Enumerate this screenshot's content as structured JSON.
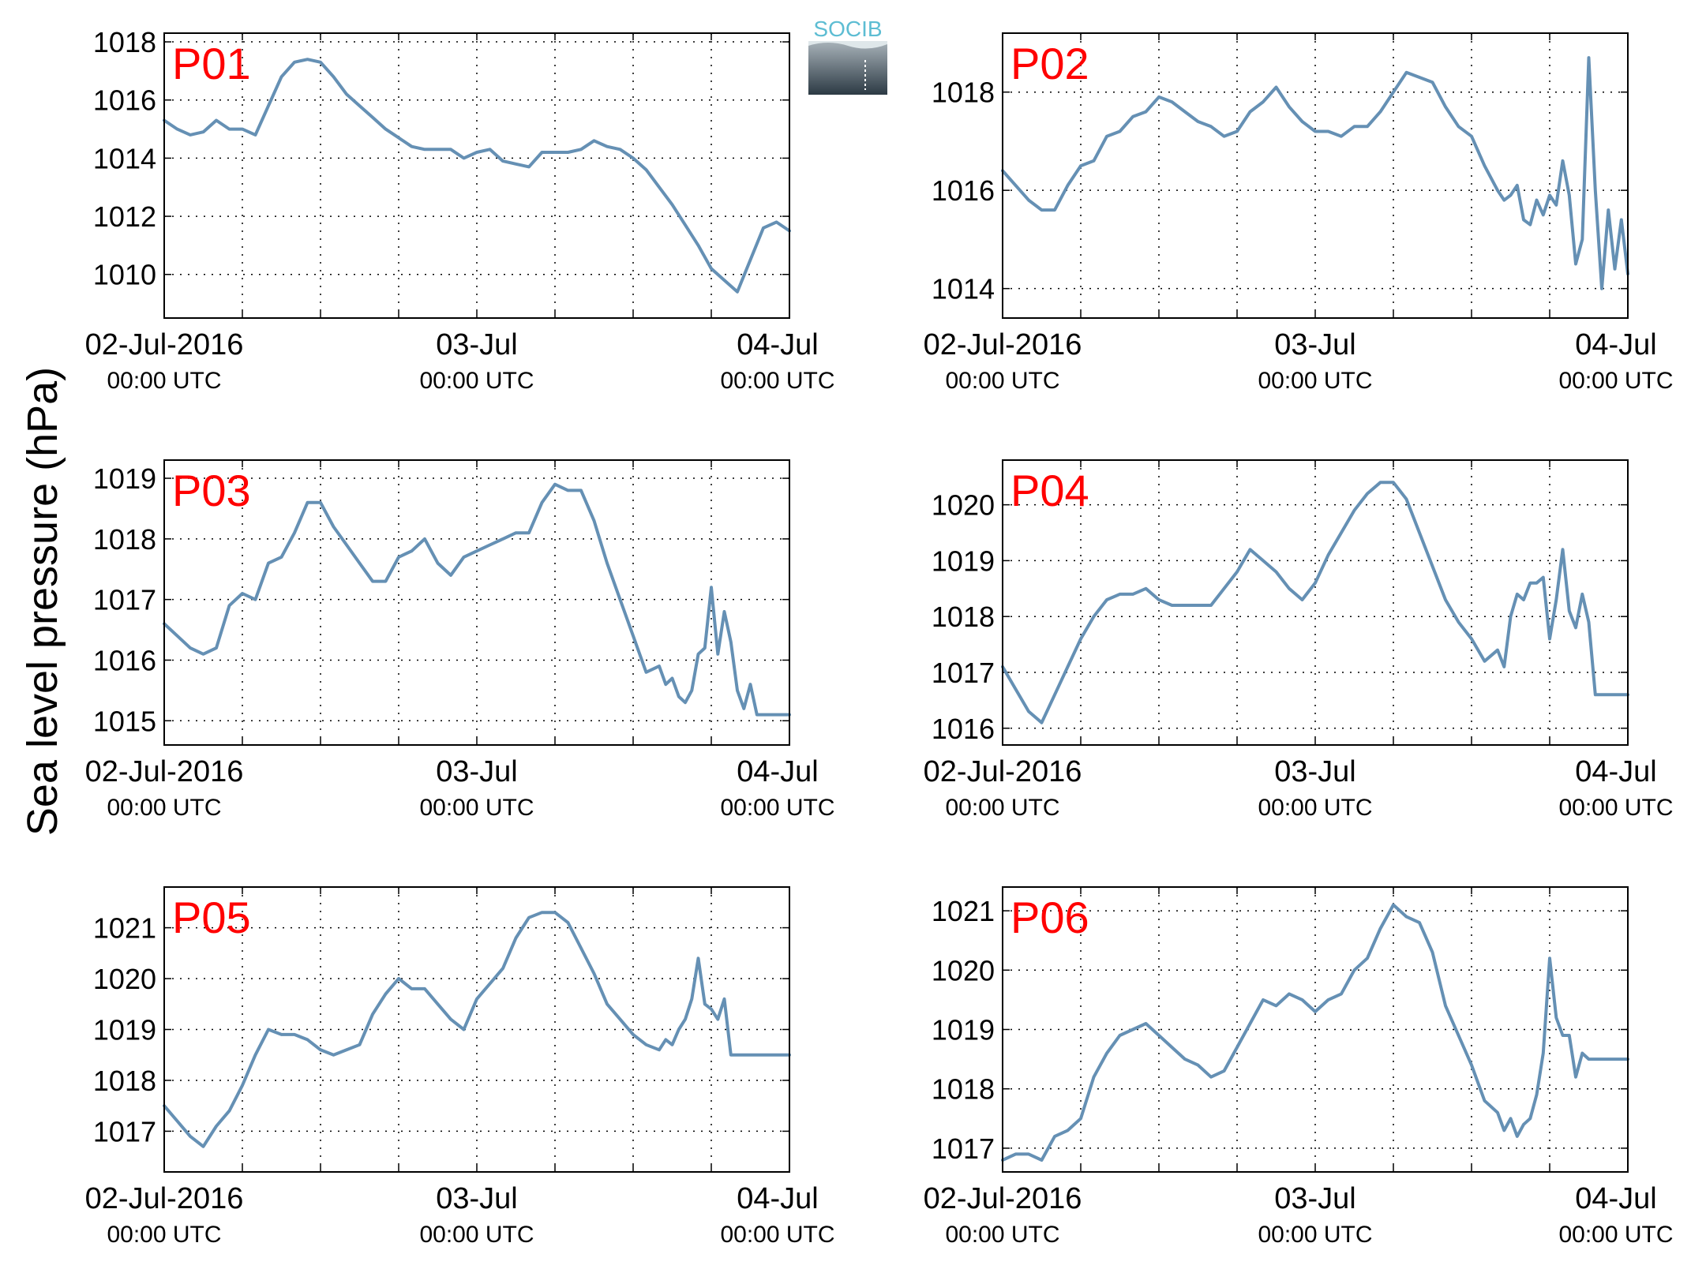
{
  "figure": {
    "ylabel": "Sea level pressure (hPa)",
    "logo_text": "SOCIB",
    "series_color": "#6590b4",
    "label_color": "#ff0000"
  },
  "chart_data": [
    {
      "type": "line",
      "panel": "P01",
      "x_labels": [
        [
          "02-Jul-2016",
          "00:00 UTC"
        ],
        [
          "03-Jul",
          "00:00 UTC"
        ],
        [
          "04-Jul",
          "00:00 UTC"
        ]
      ],
      "xlim": [
        0,
        48
      ],
      "ylim": [
        1008.5,
        1018.3
      ],
      "yticks": [
        1010,
        1012,
        1014,
        1016,
        1018
      ],
      "grid": true,
      "x": [
        0,
        1,
        2,
        3,
        4,
        5,
        6,
        7,
        8,
        9,
        10,
        11,
        12,
        13,
        14,
        15,
        16,
        17,
        18,
        19,
        20,
        21,
        22,
        23,
        24,
        25,
        26,
        27,
        28,
        29,
        30,
        31,
        32,
        33,
        34,
        35,
        36,
        37,
        38,
        39,
        40,
        41,
        42,
        43,
        44,
        45,
        46,
        47,
        48
      ],
      "y": [
        1015.3,
        1015.0,
        1014.8,
        1014.9,
        1015.3,
        1015.0,
        1015.0,
        1014.8,
        1015.8,
        1016.8,
        1017.3,
        1017.4,
        1017.3,
        1016.8,
        1016.2,
        1015.8,
        1015.4,
        1015.0,
        1014.7,
        1014.4,
        1014.3,
        1014.3,
        1014.3,
        1014.0,
        1014.2,
        1014.3,
        1013.9,
        1013.8,
        1013.7,
        1014.2,
        1014.2,
        1014.2,
        1014.3,
        1014.6,
        1014.4,
        1014.3,
        1014.0,
        1013.6,
        1013.0,
        1012.4,
        1011.7,
        1011.0,
        1010.2,
        1009.8,
        1009.4,
        1010.5,
        1011.6,
        1011.8,
        1011.5
      ]
    },
    {
      "type": "line",
      "panel": "P02",
      "x_labels": [
        [
          "02-Jul-2016",
          "00:00 UTC"
        ],
        [
          "03-Jul",
          "00:00 UTC"
        ],
        [
          "04-Jul",
          "00:00 UTC"
        ]
      ],
      "xlim": [
        0,
        48
      ],
      "ylim": [
        1013.4,
        1019.2
      ],
      "yticks": [
        1014,
        1016,
        1018
      ],
      "grid": true,
      "x": [
        0,
        1,
        2,
        3,
        4,
        5,
        6,
        7,
        8,
        9,
        10,
        11,
        12,
        13,
        14,
        15,
        16,
        17,
        18,
        19,
        20,
        21,
        22,
        23,
        24,
        25,
        26,
        27,
        28,
        29,
        30,
        31,
        32,
        33,
        34,
        35,
        36,
        37,
        38,
        38.5,
        39,
        39.5,
        40,
        40.5,
        41,
        41.5,
        42,
        42.5,
        43,
        43.5,
        44,
        44.5,
        45,
        45.5,
        46,
        46.5,
        47,
        47.5,
        48
      ],
      "y": [
        1016.4,
        1016.1,
        1015.8,
        1015.6,
        1015.6,
        1016.1,
        1016.5,
        1016.6,
        1017.1,
        1017.2,
        1017.5,
        1017.6,
        1017.9,
        1017.8,
        1017.6,
        1017.4,
        1017.3,
        1017.1,
        1017.2,
        1017.6,
        1017.8,
        1018.1,
        1017.7,
        1017.4,
        1017.2,
        1017.2,
        1017.1,
        1017.3,
        1017.3,
        1017.6,
        1018.0,
        1018.4,
        1018.3,
        1018.2,
        1017.7,
        1017.3,
        1017.1,
        1016.5,
        1016.0,
        1015.8,
        1015.9,
        1016.1,
        1015.4,
        1015.3,
        1015.8,
        1015.5,
        1015.9,
        1015.7,
        1016.6,
        1015.9,
        1014.5,
        1015.0,
        1018.7,
        1016.0,
        1014.0,
        1015.6,
        1014.4,
        1015.4,
        1014.3
      ]
    },
    {
      "type": "line",
      "panel": "P03",
      "x_labels": [
        [
          "02-Jul-2016",
          "00:00 UTC"
        ],
        [
          "03-Jul",
          "00:00 UTC"
        ],
        [
          "04-Jul",
          "00:00 UTC"
        ]
      ],
      "xlim": [
        0,
        48
      ],
      "ylim": [
        1014.6,
        1019.3
      ],
      "yticks": [
        1015,
        1016,
        1017,
        1018,
        1019
      ],
      "grid": true,
      "x": [
        0,
        1,
        2,
        3,
        4,
        5,
        6,
        7,
        8,
        9,
        10,
        11,
        12,
        13,
        14,
        15,
        16,
        17,
        18,
        19,
        20,
        21,
        22,
        23,
        24,
        25,
        26,
        27,
        28,
        29,
        30,
        31,
        32,
        33,
        34,
        35,
        36,
        37,
        38,
        38.5,
        39,
        39.5,
        40,
        40.5,
        41,
        41.5,
        42,
        42.5,
        43,
        43.5,
        44,
        44.5,
        45,
        45.5,
        46,
        46.5,
        47,
        47.5,
        48
      ],
      "y": [
        1016.6,
        1016.4,
        1016.2,
        1016.1,
        1016.2,
        1016.9,
        1017.1,
        1017.0,
        1017.6,
        1017.7,
        1018.1,
        1018.6,
        1018.6,
        1018.2,
        1017.9,
        1017.6,
        1017.3,
        1017.3,
        1017.7,
        1017.8,
        1018.0,
        1017.6,
        1017.4,
        1017.7,
        1017.8,
        1017.9,
        1018.0,
        1018.1,
        1018.1,
        1018.6,
        1018.9,
        1018.8,
        1018.8,
        1018.3,
        1017.6,
        1017.0,
        1016.4,
        1015.8,
        1015.9,
        1015.6,
        1015.7,
        1015.4,
        1015.3,
        1015.5,
        1016.1,
        1016.2,
        1017.2,
        1016.1,
        1016.8,
        1016.3,
        1015.5,
        1015.2,
        1015.6,
        1015.1,
        1015.1,
        1015.1,
        1015.1,
        1015.1,
        1015.1
      ]
    },
    {
      "type": "line",
      "panel": "P04",
      "x_labels": [
        [
          "02-Jul-2016",
          "00:00 UTC"
        ],
        [
          "03-Jul",
          "00:00 UTC"
        ],
        [
          "04-Jul",
          "00:00 UTC"
        ]
      ],
      "xlim": [
        0,
        48
      ],
      "ylim": [
        1015.7,
        1020.8
      ],
      "yticks": [
        1016,
        1017,
        1018,
        1019,
        1020
      ],
      "grid": true,
      "x": [
        0,
        1,
        2,
        3,
        4,
        5,
        6,
        7,
        8,
        9,
        10,
        11,
        12,
        13,
        14,
        15,
        16,
        17,
        18,
        19,
        20,
        21,
        22,
        23,
        24,
        25,
        26,
        27,
        28,
        29,
        30,
        31,
        32,
        33,
        34,
        35,
        36,
        37,
        38,
        38.5,
        39,
        39.5,
        40,
        40.5,
        41,
        41.5,
        42,
        42.5,
        43,
        43.5,
        44,
        44.5,
        45,
        45.5,
        46,
        46.5,
        47,
        47.5,
        48
      ],
      "y": [
        1017.1,
        1016.7,
        1016.3,
        1016.1,
        1016.6,
        1017.1,
        1017.6,
        1018.0,
        1018.3,
        1018.4,
        1018.4,
        1018.5,
        1018.3,
        1018.2,
        1018.2,
        1018.2,
        1018.2,
        1018.5,
        1018.8,
        1019.2,
        1019.0,
        1018.8,
        1018.5,
        1018.3,
        1018.6,
        1019.1,
        1019.5,
        1019.9,
        1020.2,
        1020.4,
        1020.4,
        1020.1,
        1019.5,
        1018.9,
        1018.3,
        1017.9,
        1017.6,
        1017.2,
        1017.4,
        1017.1,
        1018.0,
        1018.4,
        1018.3,
        1018.6,
        1018.6,
        1018.7,
        1017.6,
        1018.3,
        1019.2,
        1018.1,
        1017.8,
        1018.4,
        1017.9,
        1016.6,
        1016.6,
        1016.6,
        1016.6,
        1016.6,
        1016.6
      ]
    },
    {
      "type": "line",
      "panel": "P05",
      "x_labels": [
        [
          "02-Jul-2016",
          "00:00 UTC"
        ],
        [
          "03-Jul",
          "00:00 UTC"
        ],
        [
          "04-Jul",
          "00:00 UTC"
        ]
      ],
      "xlim": [
        0,
        48
      ],
      "ylim": [
        1016.2,
        1021.8
      ],
      "yticks": [
        1017,
        1018,
        1019,
        1020,
        1021
      ],
      "grid": true,
      "x": [
        0,
        1,
        2,
        3,
        4,
        5,
        6,
        7,
        8,
        9,
        10,
        11,
        12,
        13,
        14,
        15,
        16,
        17,
        18,
        19,
        20,
        21,
        22,
        23,
        24,
        25,
        26,
        27,
        28,
        29,
        30,
        31,
        32,
        33,
        34,
        35,
        36,
        37,
        38,
        38.5,
        39,
        39.5,
        40,
        40.5,
        41,
        41.5,
        42,
        42.5,
        43,
        43.5,
        44,
        44.5,
        45,
        45.5,
        46,
        46.5,
        47,
        47.5,
        48
      ],
      "y": [
        1017.5,
        1017.2,
        1016.9,
        1016.7,
        1017.1,
        1017.4,
        1017.9,
        1018.5,
        1019.0,
        1018.9,
        1018.9,
        1018.8,
        1018.6,
        1018.5,
        1018.6,
        1018.7,
        1019.3,
        1019.7,
        1020.0,
        1019.8,
        1019.8,
        1019.5,
        1019.2,
        1019.0,
        1019.6,
        1019.9,
        1020.2,
        1020.8,
        1021.2,
        1021.3,
        1021.3,
        1021.1,
        1020.6,
        1020.1,
        1019.5,
        1019.2,
        1018.9,
        1018.7,
        1018.6,
        1018.8,
        1018.7,
        1019.0,
        1019.2,
        1019.6,
        1020.4,
        1019.5,
        1019.4,
        1019.2,
        1019.6,
        1018.5,
        1018.5,
        1018.5,
        1018.5,
        1018.5,
        1018.5,
        1018.5,
        1018.5,
        1018.5,
        1018.5
      ]
    },
    {
      "type": "line",
      "panel": "P06",
      "x_labels": [
        [
          "02-Jul-2016",
          "00:00 UTC"
        ],
        [
          "03-Jul",
          "00:00 UTC"
        ],
        [
          "04-Jul",
          "00:00 UTC"
        ]
      ],
      "xlim": [
        0,
        48
      ],
      "ylim": [
        1016.6,
        1021.4
      ],
      "yticks": [
        1017,
        1018,
        1019,
        1020,
        1021
      ],
      "grid": true,
      "x": [
        0,
        1,
        2,
        3,
        4,
        5,
        6,
        7,
        8,
        9,
        10,
        11,
        12,
        13,
        14,
        15,
        16,
        17,
        18,
        19,
        20,
        21,
        22,
        23,
        24,
        25,
        26,
        27,
        28,
        29,
        30,
        31,
        32,
        33,
        34,
        35,
        36,
        37,
        38,
        38.5,
        39,
        39.5,
        40,
        40.5,
        41,
        41.5,
        42,
        42.5,
        43,
        43.5,
        44,
        44.5,
        45,
        45.5,
        46,
        46.5,
        47,
        47.5,
        48
      ],
      "y": [
        1016.8,
        1016.9,
        1016.9,
        1016.8,
        1017.2,
        1017.3,
        1017.5,
        1018.2,
        1018.6,
        1018.9,
        1019.0,
        1019.1,
        1018.9,
        1018.7,
        1018.5,
        1018.4,
        1018.2,
        1018.3,
        1018.7,
        1019.1,
        1019.5,
        1019.4,
        1019.6,
        1019.5,
        1019.3,
        1019.5,
        1019.6,
        1020.0,
        1020.2,
        1020.7,
        1021.1,
        1020.9,
        1020.8,
        1020.3,
        1019.4,
        1018.9,
        1018.4,
        1017.8,
        1017.6,
        1017.3,
        1017.5,
        1017.2,
        1017.4,
        1017.5,
        1017.9,
        1018.6,
        1020.2,
        1019.2,
        1018.9,
        1018.9,
        1018.2,
        1018.6,
        1018.5,
        1018.5,
        1018.5,
        1018.5,
        1018.5,
        1018.5,
        1018.5
      ]
    }
  ]
}
